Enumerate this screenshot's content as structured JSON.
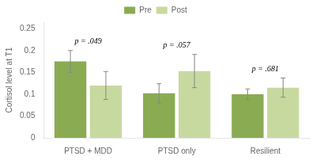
{
  "chart_data": {
    "type": "bar",
    "categories": [
      "PTSD + MDD",
      "PTSD only",
      "Resilient"
    ],
    "series": [
      {
        "name": "Pre",
        "color": "#8aab52",
        "values": [
          0.175,
          0.102,
          0.1
        ],
        "errors": [
          0.025,
          0.022,
          0.012
        ]
      },
      {
        "name": "Post",
        "color": "#c8d9a0",
        "values": [
          0.12,
          0.153,
          0.115
        ],
        "errors": [
          0.032,
          0.038,
          0.022
        ]
      }
    ],
    "ylabel": "Cortisol level at T1",
    "ylim": [
      0,
      0.265
    ],
    "yticks": [
      0,
      0.05,
      0.1,
      0.15,
      0.2,
      0.25
    ],
    "grid": false,
    "legend": "top",
    "annotations": [
      {
        "text": "p = .049",
        "category": "PTSD + MDD"
      },
      {
        "text": "p = .057",
        "category": "PTSD only"
      },
      {
        "text": "p = .681",
        "category": "Resilient"
      }
    ]
  }
}
